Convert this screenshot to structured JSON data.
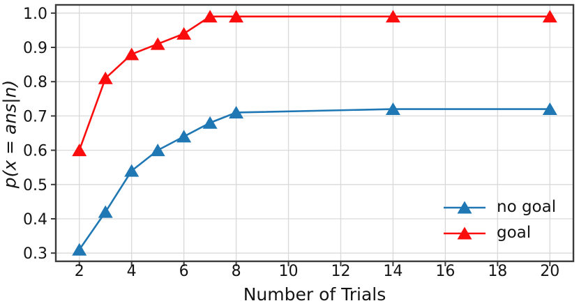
{
  "figure": {
    "background": "#ffffff",
    "grid_color": "#d9d9d9",
    "spine_color": "#3b3b3b",
    "tick_color": "#3b3b3b",
    "text_color": "#141414"
  },
  "chart_data": {
    "type": "line",
    "title": "",
    "xlabel": "Number of Trials",
    "ylabel": "p(x = ans|n)",
    "x": [
      2,
      3,
      4,
      5,
      6,
      7,
      8,
      14,
      20
    ],
    "series": [
      {
        "name": "no goal",
        "color": "#1f77b4",
        "marker": "triangle-up-icon",
        "values": [
          0.31,
          0.42,
          0.54,
          0.6,
          0.64,
          0.68,
          0.71,
          0.72,
          0.72
        ]
      },
      {
        "name": "goal",
        "color": "#fb0d0d",
        "marker": "triangle-up-icon",
        "values": [
          0.6,
          0.81,
          0.88,
          0.91,
          0.94,
          0.99,
          0.99,
          0.99,
          0.99
        ]
      }
    ],
    "xticks": [
      2,
      4,
      6,
      8,
      10,
      12,
      14,
      16,
      18,
      20
    ],
    "xtick_labels": [
      "2",
      "4",
      "6",
      "8",
      "10",
      "12",
      "14",
      "16",
      "18",
      "20"
    ],
    "yticks": [
      0.3,
      0.4,
      0.5,
      0.6,
      0.7,
      0.8,
      0.9,
      1.0
    ],
    "ytick_labels": [
      "0.3",
      "0.4",
      "0.5",
      "0.6",
      "0.7",
      "0.8",
      "0.9",
      "1.0"
    ],
    "xlim": [
      1.1,
      20.9
    ],
    "ylim": [
      0.276,
      1.024
    ],
    "grid": true,
    "legend_position": "lower right",
    "legend_frame": false
  }
}
